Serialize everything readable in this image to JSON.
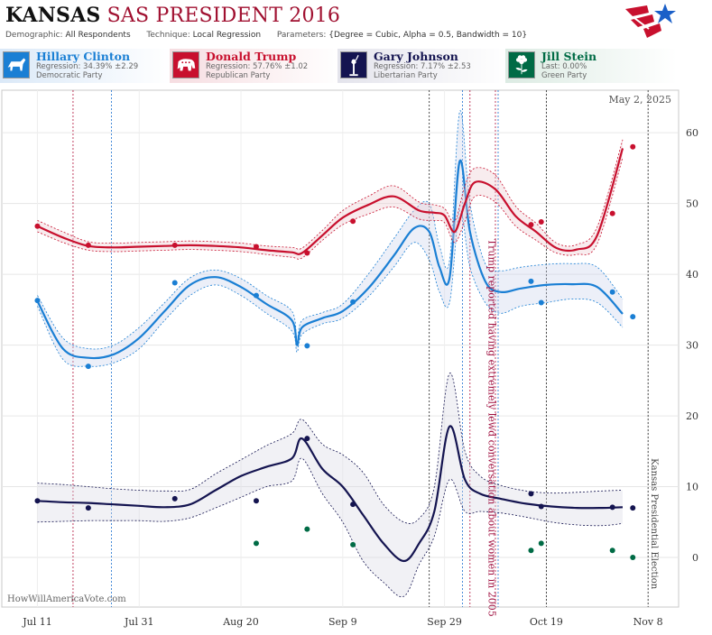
{
  "header": {
    "state": "KANSAS",
    "subtitle": "SAS PRESIDENT 2016",
    "demographic_label": "Demographic:",
    "demographic": "All Respondents",
    "technique_label": "Technique:",
    "technique": "Local Regression",
    "parameters_label": "Parameters:",
    "parameters": "{Degree = Cubic, Alpha = 0.5, Bandwidth = 10}"
  },
  "candidates": [
    {
      "name": "Hillary Clinton",
      "stat": "Regression: 34.39% ±2.29",
      "party": "Democratic Party",
      "color": "#1a7fd4"
    },
    {
      "name": "Donald Trump",
      "stat": "Regression: 57.76% ±1.02",
      "party": "Republican Party",
      "color": "#c8102e"
    },
    {
      "name": "Gary Johnson",
      "stat": "Regression: 7.17% ±2.53",
      "party": "Libertarian Party",
      "color": "#141450"
    },
    {
      "name": "Jill Stein",
      "stat": "Last: 0.00%",
      "party": "Green Party",
      "color": "#006b45"
    }
  ],
  "chart_data": {
    "type": "line",
    "date_label": "May 2, 2025",
    "watermark": "HowWillAmericaVote.com",
    "x_ticks": [
      "Jul 11",
      "Jul 31",
      "Aug 20",
      "Sep 9",
      "Sep 29",
      "Oct 19",
      "Nov 8"
    ],
    "x_range": [
      "2016-07-04",
      "2016-11-14"
    ],
    "ylim": [
      -7,
      66
    ],
    "y_ticks": [
      0,
      10,
      20,
      30,
      40,
      50,
      60
    ],
    "grid": true,
    "annotations": [
      {
        "date": "2016-10-07",
        "text": "Trump reported having extremely lewd conversation about women in 2005",
        "color": "#a01040"
      },
      {
        "date": "2016-11-08",
        "text": "Kansas Presidential Election",
        "color": "#444444"
      }
    ],
    "debate_lines_red": [
      "2016-07-18",
      "2016-10-04",
      "2016-10-09"
    ],
    "debate_lines_blue": [
      "2016-07-25",
      "2016-10-02",
      "2016-10-09"
    ],
    "black_lines": [
      "2016-09-26",
      "2016-10-19",
      "2016-11-08"
    ],
    "series": [
      {
        "name": "Hillary Clinton",
        "color": "#1a7fd4",
        "band_color": "rgba(200,210,235,0.35)",
        "x": [
          "2016-07-11",
          "2016-07-16",
          "2016-07-21",
          "2016-07-26",
          "2016-07-31",
          "2016-08-05",
          "2016-08-10",
          "2016-08-15",
          "2016-08-20",
          "2016-08-25",
          "2016-08-30",
          "2016-08-31",
          "2016-09-01",
          "2016-09-05",
          "2016-09-09",
          "2016-09-14",
          "2016-09-19",
          "2016-09-23",
          "2016-09-26",
          "2016-09-28",
          "2016-09-30",
          "2016-10-02",
          "2016-10-04",
          "2016-10-07",
          "2016-10-10",
          "2016-10-14",
          "2016-10-19",
          "2016-10-24",
          "2016-10-29",
          "2016-11-03"
        ],
        "values": [
          36.2,
          29.5,
          28.2,
          28.7,
          31.0,
          34.8,
          38.5,
          39.6,
          38.2,
          35.8,
          33.5,
          30.0,
          32.5,
          33.8,
          34.8,
          38.0,
          42.6,
          46.5,
          46.0,
          41.0,
          39.5,
          56.0,
          46.0,
          39.0,
          37.5,
          38.0,
          38.5,
          38.6,
          38.2,
          34.4
        ],
        "lower": [
          35.5,
          28.0,
          27.0,
          27.5,
          29.5,
          33.5,
          37.0,
          38.5,
          37.0,
          34.5,
          32.0,
          29.0,
          31.5,
          33.0,
          33.8,
          36.8,
          41.0,
          44.5,
          42.0,
          37.5,
          36.0,
          49.0,
          41.0,
          36.0,
          34.5,
          35.5,
          36.0,
          36.5,
          36.0,
          32.5
        ],
        "upper": [
          37.0,
          31.0,
          29.5,
          30.0,
          32.5,
          36.0,
          39.5,
          40.6,
          39.4,
          37.0,
          34.8,
          31.0,
          33.5,
          34.6,
          35.8,
          40.0,
          45.0,
          49.0,
          50.0,
          44.0,
          42.0,
          63.0,
          50.0,
          41.5,
          40.5,
          41.0,
          41.4,
          41.5,
          41.0,
          36.5
        ],
        "points": {
          "x": [
            "2016-07-11",
            "2016-07-21",
            "2016-08-07",
            "2016-08-23",
            "2016-09-02",
            "2016-09-11",
            "2016-10-16",
            "2016-10-18",
            "2016-11-01",
            "2016-11-05"
          ],
          "y": [
            36.3,
            27.0,
            38.8,
            37.0,
            29.9,
            36.1,
            39.0,
            36.0,
            37.5,
            34.0
          ]
        }
      },
      {
        "name": "Donald Trump",
        "color": "#c8102e",
        "band_color": "rgba(235,200,205,0.35)",
        "x": [
          "2016-07-11",
          "2016-07-16",
          "2016-07-21",
          "2016-07-26",
          "2016-07-31",
          "2016-08-05",
          "2016-08-10",
          "2016-08-15",
          "2016-08-20",
          "2016-08-25",
          "2016-08-30",
          "2016-09-01",
          "2016-09-05",
          "2016-09-09",
          "2016-09-14",
          "2016-09-19",
          "2016-09-24",
          "2016-09-27",
          "2016-09-29",
          "2016-10-01",
          "2016-10-03",
          "2016-10-05",
          "2016-10-09",
          "2016-10-13",
          "2016-10-17",
          "2016-10-21",
          "2016-10-25",
          "2016-10-29",
          "2016-11-03"
        ],
        "values": [
          46.8,
          45.2,
          44.0,
          43.8,
          43.9,
          44.0,
          44.1,
          44.0,
          43.8,
          43.4,
          43.1,
          43.0,
          45.5,
          48.0,
          49.8,
          51.0,
          49.0,
          48.7,
          48.3,
          46.0,
          50.0,
          53.0,
          52.0,
          48.2,
          46.0,
          43.7,
          43.5,
          45.5,
          57.8
        ],
        "lower": [
          46.0,
          44.5,
          43.4,
          43.2,
          43.3,
          43.4,
          43.5,
          43.4,
          43.2,
          42.8,
          42.4,
          42.3,
          44.8,
          47.0,
          48.5,
          49.5,
          47.8,
          47.6,
          47.3,
          44.5,
          47.5,
          51.0,
          50.2,
          46.8,
          44.8,
          43.0,
          42.8,
          44.3,
          56.5
        ],
        "upper": [
          47.6,
          46.0,
          44.6,
          44.4,
          44.5,
          44.6,
          44.7,
          44.6,
          44.4,
          44.0,
          43.8,
          43.7,
          46.2,
          49.0,
          51.0,
          52.5,
          50.2,
          49.8,
          49.3,
          47.5,
          52.5,
          55.0,
          54.0,
          49.6,
          47.2,
          44.4,
          44.2,
          46.7,
          59.0
        ],
        "points": {
          "x": [
            "2016-07-11",
            "2016-07-21",
            "2016-08-07",
            "2016-08-23",
            "2016-09-02",
            "2016-09-11",
            "2016-10-16",
            "2016-10-18",
            "2016-11-01",
            "2016-11-05"
          ],
          "y": [
            46.8,
            44.1,
            44.1,
            43.9,
            43.0,
            47.5,
            47.0,
            47.4,
            48.6,
            58.0
          ]
        }
      },
      {
        "name": "Gary Johnson",
        "color": "#141450",
        "band_color": "rgba(215,215,225,0.35)",
        "x": [
          "2016-07-11",
          "2016-07-16",
          "2016-07-21",
          "2016-07-26",
          "2016-07-31",
          "2016-08-05",
          "2016-08-10",
          "2016-08-15",
          "2016-08-20",
          "2016-08-25",
          "2016-08-30",
          "2016-09-01",
          "2016-09-05",
          "2016-09-09",
          "2016-09-13",
          "2016-09-17",
          "2016-09-21",
          "2016-09-24",
          "2016-09-27",
          "2016-09-30",
          "2016-10-03",
          "2016-10-06",
          "2016-10-10",
          "2016-10-15",
          "2016-10-20",
          "2016-10-25",
          "2016-10-30",
          "2016-11-03"
        ],
        "values": [
          8.0,
          7.8,
          7.7,
          7.5,
          7.3,
          7.1,
          7.5,
          9.5,
          11.5,
          12.8,
          14.0,
          16.8,
          12.5,
          10.0,
          6.0,
          2.0,
          -0.5,
          2.0,
          6.5,
          18.5,
          11.0,
          9.0,
          8.3,
          7.6,
          7.2,
          7.0,
          7.0,
          7.1
        ],
        "lower": [
          5.0,
          5.1,
          5.2,
          5.2,
          5.2,
          5.1,
          5.6,
          7.0,
          8.5,
          10.0,
          10.8,
          14.0,
          9.0,
          5.0,
          -0.5,
          -3.5,
          -5.5,
          -1.0,
          3.0,
          11.0,
          6.5,
          6.5,
          6.3,
          5.7,
          5.0,
          4.6,
          4.5,
          4.8
        ],
        "upper": [
          10.5,
          10.3,
          10.0,
          9.7,
          9.5,
          9.4,
          9.6,
          11.8,
          13.8,
          15.8,
          17.5,
          19.5,
          16.0,
          14.5,
          12.0,
          7.5,
          5.0,
          5.5,
          10.0,
          26.0,
          15.0,
          11.5,
          10.2,
          9.4,
          9.1,
          9.2,
          9.4,
          9.5
        ],
        "points": {
          "x": [
            "2016-07-11",
            "2016-07-21",
            "2016-08-07",
            "2016-08-23",
            "2016-09-02",
            "2016-09-11",
            "2016-10-16",
            "2016-10-18",
            "2016-11-01",
            "2016-11-05"
          ],
          "y": [
            8.0,
            7.0,
            8.3,
            8.0,
            16.8,
            7.5,
            9.0,
            7.2,
            7.1,
            7.0
          ]
        }
      },
      {
        "name": "Jill Stein",
        "color": "#006b45",
        "points": {
          "x": [
            "2016-08-23",
            "2016-09-02",
            "2016-09-11",
            "2016-10-16",
            "2016-10-18",
            "2016-11-01",
            "2016-11-05"
          ],
          "y": [
            2.0,
            4.0,
            1.8,
            1.0,
            2.0,
            1.0,
            0.0
          ]
        }
      }
    ]
  }
}
